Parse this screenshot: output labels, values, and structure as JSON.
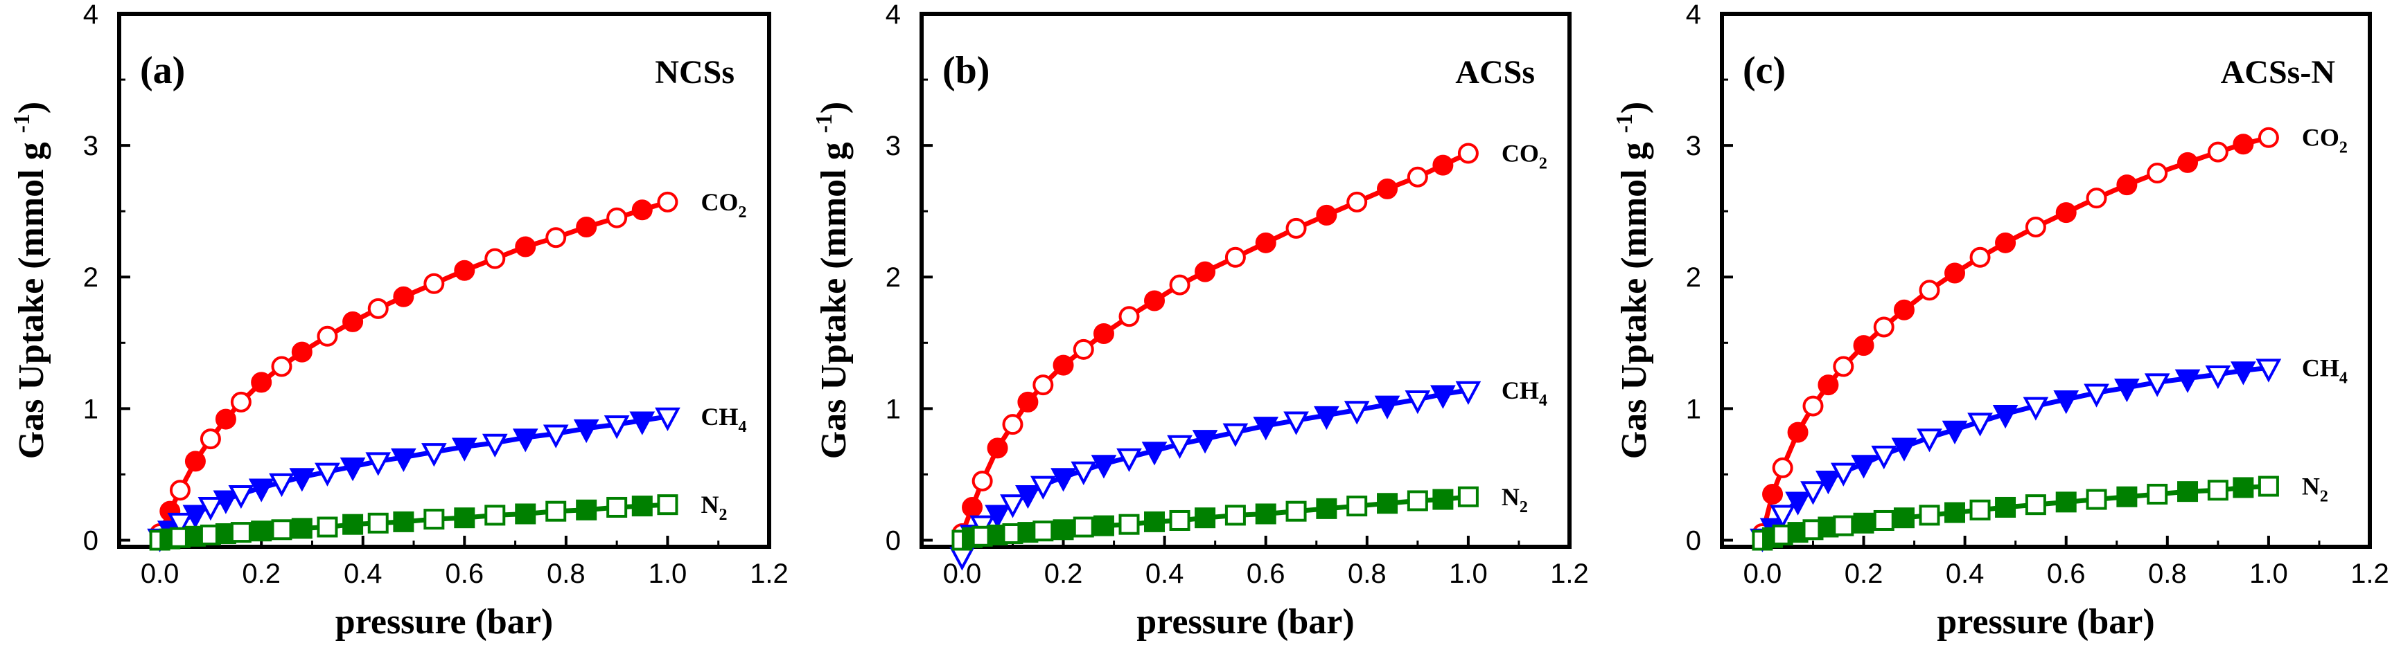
{
  "chart_data": [
    {
      "type": "scatter",
      "panel_label": "(a)",
      "sample": "NCSs",
      "xlabel": "pressure (bar)",
      "ylabel": "Gas Uptake (mmol g",
      "ylabel_sup": "-1",
      "ylabel_close": ")",
      "xlim": [
        -0.08,
        1.2
      ],
      "ylim": [
        -0.05,
        4
      ],
      "xticks": [
        "0.0",
        "0.2",
        "0.4",
        "0.6",
        "0.8",
        "1.0",
        "1.2"
      ],
      "yticks": [
        "0",
        "1",
        "2",
        "3",
        "4"
      ],
      "x": [
        0.0,
        0.02,
        0.04,
        0.07,
        0.1,
        0.13,
        0.16,
        0.2,
        0.24,
        0.28,
        0.33,
        0.38,
        0.43,
        0.48,
        0.54,
        0.6,
        0.66,
        0.72,
        0.78,
        0.84,
        0.9,
        0.95,
        1.0
      ],
      "series": [
        {
          "name": "CO",
          "sub": "2",
          "color": "#ff0000",
          "marker": "circle",
          "values": [
            0.05,
            0.22,
            0.38,
            0.6,
            0.77,
            0.92,
            1.05,
            1.2,
            1.32,
            1.43,
            1.55,
            1.66,
            1.76,
            1.85,
            1.95,
            2.05,
            2.14,
            2.23,
            2.3,
            2.38,
            2.45,
            2.51,
            2.57
          ]
        },
        {
          "name": "CH",
          "sub": "4",
          "color": "#0000ff",
          "marker": "triangle-down",
          "values": [
            0.02,
            0.08,
            0.14,
            0.2,
            0.26,
            0.31,
            0.35,
            0.4,
            0.44,
            0.48,
            0.52,
            0.56,
            0.6,
            0.63,
            0.67,
            0.71,
            0.74,
            0.78,
            0.81,
            0.85,
            0.88,
            0.91,
            0.94
          ]
        },
        {
          "name": "N",
          "sub": "2",
          "color": "#008000",
          "marker": "square",
          "values": [
            0.0,
            0.01,
            0.02,
            0.03,
            0.04,
            0.05,
            0.06,
            0.07,
            0.08,
            0.09,
            0.1,
            0.12,
            0.13,
            0.14,
            0.16,
            0.17,
            0.19,
            0.2,
            0.22,
            0.23,
            0.25,
            0.26,
            0.27
          ]
        }
      ]
    },
    {
      "type": "scatter",
      "panel_label": "(b)",
      "sample": "ACSs",
      "xlabel": "pressure (bar)",
      "ylabel": "Gas Uptake (mmol g",
      "ylabel_sup": "-1",
      "ylabel_close": ")",
      "xlim": [
        -0.08,
        1.2
      ],
      "ylim": [
        -0.05,
        4
      ],
      "xticks": [
        "0.0",
        "0.2",
        "0.4",
        "0.6",
        "0.8",
        "1.0",
        "1.2"
      ],
      "yticks": [
        "0",
        "1",
        "2",
        "3",
        "4"
      ],
      "x": [
        0.0,
        0.02,
        0.04,
        0.07,
        0.1,
        0.13,
        0.16,
        0.2,
        0.24,
        0.28,
        0.33,
        0.38,
        0.43,
        0.48,
        0.54,
        0.6,
        0.66,
        0.72,
        0.78,
        0.84,
        0.9,
        0.95,
        1.0
      ],
      "series": [
        {
          "name": "CO",
          "sub": "2",
          "color": "#ff0000",
          "marker": "circle",
          "values": [
            0.05,
            0.25,
            0.45,
            0.7,
            0.88,
            1.05,
            1.18,
            1.33,
            1.45,
            1.57,
            1.7,
            1.82,
            1.94,
            2.04,
            2.15,
            2.26,
            2.37,
            2.47,
            2.57,
            2.67,
            2.76,
            2.85,
            2.94
          ]
        },
        {
          "name": "CH",
          "sub": "4",
          "color": "#0000ff",
          "marker": "triangle-down",
          "values": [
            -0.12,
            0.05,
            0.12,
            0.2,
            0.28,
            0.35,
            0.42,
            0.48,
            0.53,
            0.58,
            0.63,
            0.68,
            0.73,
            0.77,
            0.82,
            0.87,
            0.91,
            0.95,
            0.99,
            1.03,
            1.07,
            1.11,
            1.14
          ]
        },
        {
          "name": "N",
          "sub": "2",
          "color": "#008000",
          "marker": "square",
          "values": [
            0.0,
            0.02,
            0.03,
            0.04,
            0.05,
            0.06,
            0.07,
            0.08,
            0.1,
            0.11,
            0.12,
            0.14,
            0.15,
            0.17,
            0.19,
            0.2,
            0.22,
            0.24,
            0.26,
            0.28,
            0.3,
            0.31,
            0.33
          ]
        }
      ]
    },
    {
      "type": "scatter",
      "panel_label": "(c)",
      "sample": "ACSs-N",
      "xlabel": "pressure (bar)",
      "ylabel": "Gas Uptake (mmol g",
      "ylabel_sup": "-1",
      "ylabel_close": ")",
      "xlim": [
        -0.08,
        1.2
      ],
      "ylim": [
        -0.05,
        4
      ],
      "xticks": [
        "0.0",
        "0.2",
        "0.4",
        "0.6",
        "0.8",
        "1.0",
        "1.2"
      ],
      "yticks": [
        "0",
        "1",
        "2",
        "3",
        "4"
      ],
      "x": [
        0.0,
        0.02,
        0.04,
        0.07,
        0.1,
        0.13,
        0.16,
        0.2,
        0.24,
        0.28,
        0.33,
        0.38,
        0.43,
        0.48,
        0.54,
        0.6,
        0.66,
        0.72,
        0.78,
        0.84,
        0.9,
        0.95,
        1.0
      ],
      "series": [
        {
          "name": "CO",
          "sub": "2",
          "color": "#ff0000",
          "marker": "circle",
          "values": [
            0.05,
            0.35,
            0.55,
            0.82,
            1.02,
            1.18,
            1.32,
            1.48,
            1.62,
            1.75,
            1.9,
            2.03,
            2.15,
            2.26,
            2.38,
            2.49,
            2.6,
            2.7,
            2.79,
            2.87,
            2.95,
            3.01,
            3.06
          ]
        },
        {
          "name": "CH",
          "sub": "4",
          "color": "#0000ff",
          "marker": "triangle-down",
          "values": [
            0.02,
            0.1,
            0.2,
            0.3,
            0.38,
            0.46,
            0.52,
            0.58,
            0.65,
            0.71,
            0.78,
            0.84,
            0.9,
            0.96,
            1.02,
            1.07,
            1.12,
            1.16,
            1.2,
            1.23,
            1.26,
            1.29,
            1.31
          ]
        },
        {
          "name": "N",
          "sub": "2",
          "color": "#008000",
          "marker": "square",
          "values": [
            0.0,
            0.02,
            0.04,
            0.06,
            0.08,
            0.1,
            0.11,
            0.13,
            0.15,
            0.17,
            0.19,
            0.21,
            0.23,
            0.25,
            0.27,
            0.29,
            0.31,
            0.33,
            0.35,
            0.37,
            0.38,
            0.4,
            0.41
          ]
        }
      ]
    }
  ]
}
